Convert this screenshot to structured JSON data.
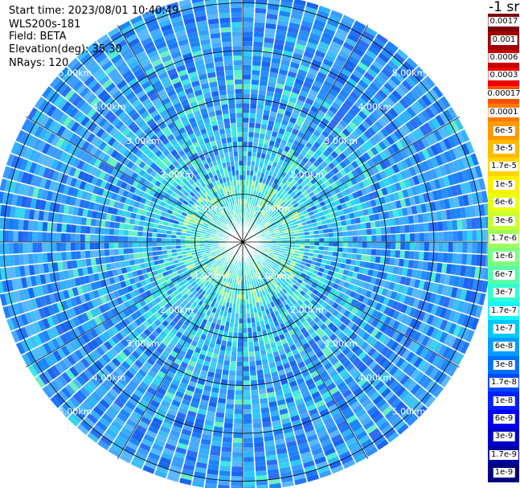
{
  "info": {
    "start_time": "Start time: 2023/08/01 10:40:49",
    "instrument": "WLS200s-181",
    "field": "Field: BETA",
    "elevation": "Elevation(deg): 35.30",
    "nrays": "NRays: 120"
  },
  "colorbar": {
    "unit_label": "-1 sr",
    "ticks": [
      "0.0017",
      "0.001",
      "0.0006",
      "0.0003",
      "0.00017",
      "0.0001",
      "6e-5",
      "3e-5",
      "1.7e-5",
      "1e-5",
      "6e-6",
      "3e-6",
      "1.7e-6",
      "1e-6",
      "6e-7",
      "3e-7",
      "1.7e-7",
      "1e-7",
      "6e-8",
      "3e-8",
      "1.7e-8",
      "1e-8",
      "6e-9",
      "3e-9",
      "1.7e-9",
      "1e-9"
    ],
    "colors": [
      "#7f0000",
      "#a00000",
      "#c80000",
      "#f00000",
      "#ff5000",
      "#ff7a00",
      "#ff9a00",
      "#ffbb00",
      "#ffd500",
      "#fff000",
      "#e8ff10",
      "#c8ff30",
      "#9fff58",
      "#7fff7f",
      "#58ffa8",
      "#30ffd0",
      "#18f4ff",
      "#00c8ff",
      "#009cff",
      "#0070ff",
      "#0048ff",
      "#0020ff",
      "#0000f0",
      "#0000c8",
      "#0000a0",
      "#00007f"
    ]
  },
  "chart_data": {
    "type": "heatmap",
    "projection": "polar PPI scan",
    "field": "BETA",
    "n_rays": 120,
    "elevation_deg": 35.3,
    "range_rings_km": [
      1,
      2,
      3,
      4,
      5
    ],
    "ring_labels": [
      "1.00km",
      "2.00km",
      "3.00km",
      "4.00km",
      "5.00km"
    ],
    "azimuth_spokes_deg": [
      0,
      30,
      60,
      90,
      120,
      150,
      180,
      210,
      240,
      270,
      300,
      330
    ],
    "max_range_km": 5.2,
    "value_profile": {
      "range_km": [
        0.0,
        0.5,
        1.0,
        1.5,
        2.0,
        2.5,
        3.0,
        3.5,
        4.0,
        4.5,
        5.0
      ],
      "approx_beta": [
        "1e-6",
        "1.7e-6",
        "1e-6",
        "1e-7",
        "6e-8",
        "6e-8",
        "1e-7",
        "6e-8",
        "6e-8",
        "3e-8",
        "3e-8"
      ]
    },
    "colorscale": "log, 1e-9 to 0.0017 sr^-1"
  }
}
